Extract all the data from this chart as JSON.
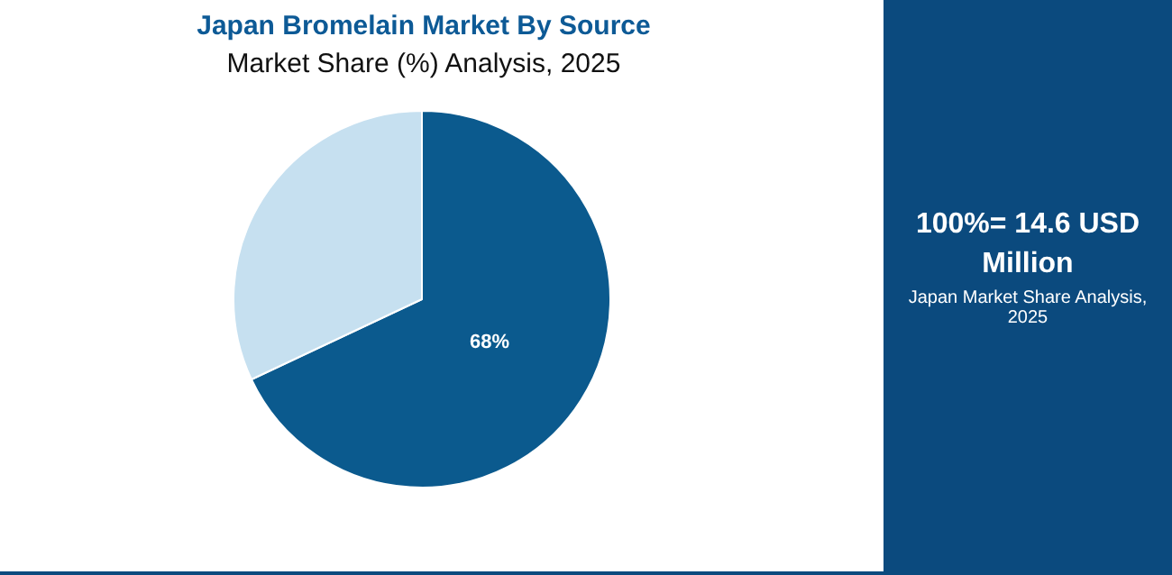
{
  "chart_data": {
    "type": "pie",
    "title": "Japan Bromelain Market By Source",
    "subtitle": "Market Share (%) Analysis, 2025",
    "categories": [
      null,
      null
    ],
    "values": [
      68,
      32
    ],
    "colors": [
      "#0b5a8e",
      "#c6e0f0"
    ],
    "value_labels": [
      "68%",
      null
    ],
    "annotations": [
      "100%= 14.6 USD Million",
      "Japan Market Share Analysis, 2025"
    ]
  }
}
